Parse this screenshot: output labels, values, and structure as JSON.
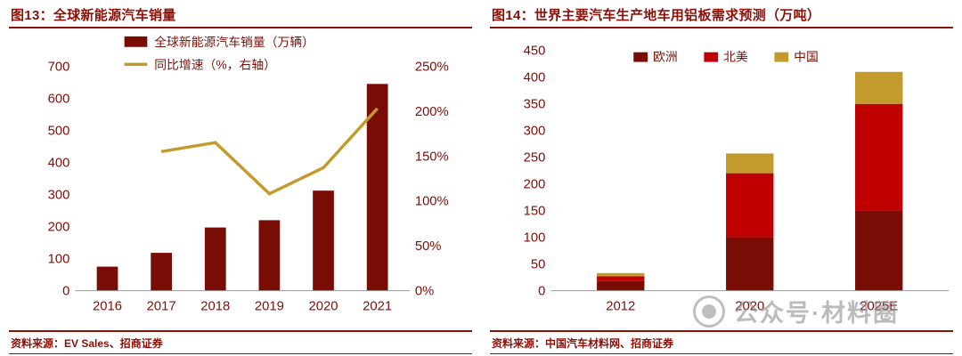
{
  "colors": {
    "accent": "#8a1008",
    "text": "#7c1008",
    "maroon": "#7a0c06",
    "bright_red": "#c00000",
    "gold": "#c39b2c",
    "axis_line": "#9a9a9a",
    "watermark_gray": "#8f8f8f"
  },
  "figures": {
    "left": {
      "title": "图13：全球新能源汽车销量",
      "source": "资料来源：EV Sales、招商证券"
    },
    "right": {
      "title": "图14：世界主要汽车生产地车用铝板需求预测（万吨）",
      "source": "资料来源：中国汽车材料网、招商证券"
    }
  },
  "watermark": {
    "text": "公众号·材料圈"
  },
  "chart_data": [
    {
      "type": "bar",
      "variant": "combo-bar-line",
      "title": "全球新能源汽车销量",
      "categories": [
        "2016",
        "2017",
        "2018",
        "2019",
        "2020",
        "2021"
      ],
      "series": [
        {
          "name": "全球新能源汽车销量（万辆）",
          "kind": "bar",
          "axis": "left",
          "color": "#7a0c06",
          "values": [
            75,
            118,
            197,
            220,
            312,
            645
          ]
        },
        {
          "name": "同比增速（%，右轴）",
          "kind": "line",
          "axis": "right",
          "color": "#c39b2c",
          "values": [
            null,
            155,
            165,
            108,
            137,
            203
          ]
        }
      ],
      "left_axis": {
        "min": 0,
        "max": 700,
        "step": 100
      },
      "right_axis": {
        "min": 0,
        "max": 250,
        "step": 50,
        "suffix": "%"
      },
      "grid": false,
      "legend_position": "top"
    },
    {
      "type": "bar",
      "variant": "stacked-bar",
      "title": "世界主要汽车生产地车用铝板需求预测（万吨）",
      "categories": [
        "2012",
        "2020",
        "2025E"
      ],
      "series": [
        {
          "name": "欧洲",
          "color": "#7a0c06",
          "values": [
            18,
            100,
            150
          ]
        },
        {
          "name": "北美",
          "color": "#c00000",
          "values": [
            9,
            120,
            200
          ]
        },
        {
          "name": "中国",
          "color": "#c39b2c",
          "values": [
            6,
            37,
            60
          ]
        }
      ],
      "y_axis": {
        "min": 0,
        "max": 450,
        "step": 50
      },
      "grid": false,
      "legend_position": "top"
    }
  ]
}
